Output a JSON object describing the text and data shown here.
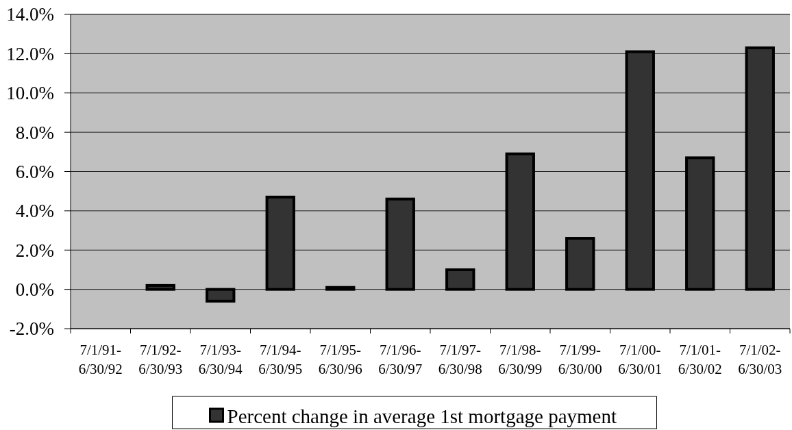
{
  "chart_data": {
    "type": "bar",
    "categories": [
      "7/1/91-6/30/92",
      "7/1/92-6/30/93",
      "7/1/93-6/30/94",
      "7/1/94-6/30/95",
      "7/1/95-6/30/96",
      "7/1/96-6/30/97",
      "7/1/97-6/30/98",
      "7/1/98-6/30/99",
      "7/1/99-6/30/00",
      "7/1/00-6/30/01",
      "7/1/01-6/30/02",
      "7/1/02-6/30/03"
    ],
    "series": [
      {
        "name": "Percent change in average 1st mortgage payment",
        "color": "#333333",
        "values": [
          0.0,
          0.2,
          -0.6,
          4.7,
          0.1,
          4.6,
          1.0,
          6.9,
          2.6,
          12.1,
          6.7,
          12.3
        ]
      }
    ],
    "ylim": [
      -2,
      14
    ],
    "yticks": [
      {
        "value": -2,
        "label": "-2.0%"
      },
      {
        "value": 0,
        "label": "0.0%"
      },
      {
        "value": 2,
        "label": "2.0%"
      },
      {
        "value": 4,
        "label": "4.0%"
      },
      {
        "value": 6,
        "label": "6.0%"
      },
      {
        "value": 8,
        "label": "8.0%"
      },
      {
        "value": 10,
        "label": "10.0%"
      },
      {
        "value": 12,
        "label": "12.0%"
      },
      {
        "value": 14,
        "label": "14.0%"
      }
    ],
    "grid": "y",
    "legend": "bottom"
  }
}
